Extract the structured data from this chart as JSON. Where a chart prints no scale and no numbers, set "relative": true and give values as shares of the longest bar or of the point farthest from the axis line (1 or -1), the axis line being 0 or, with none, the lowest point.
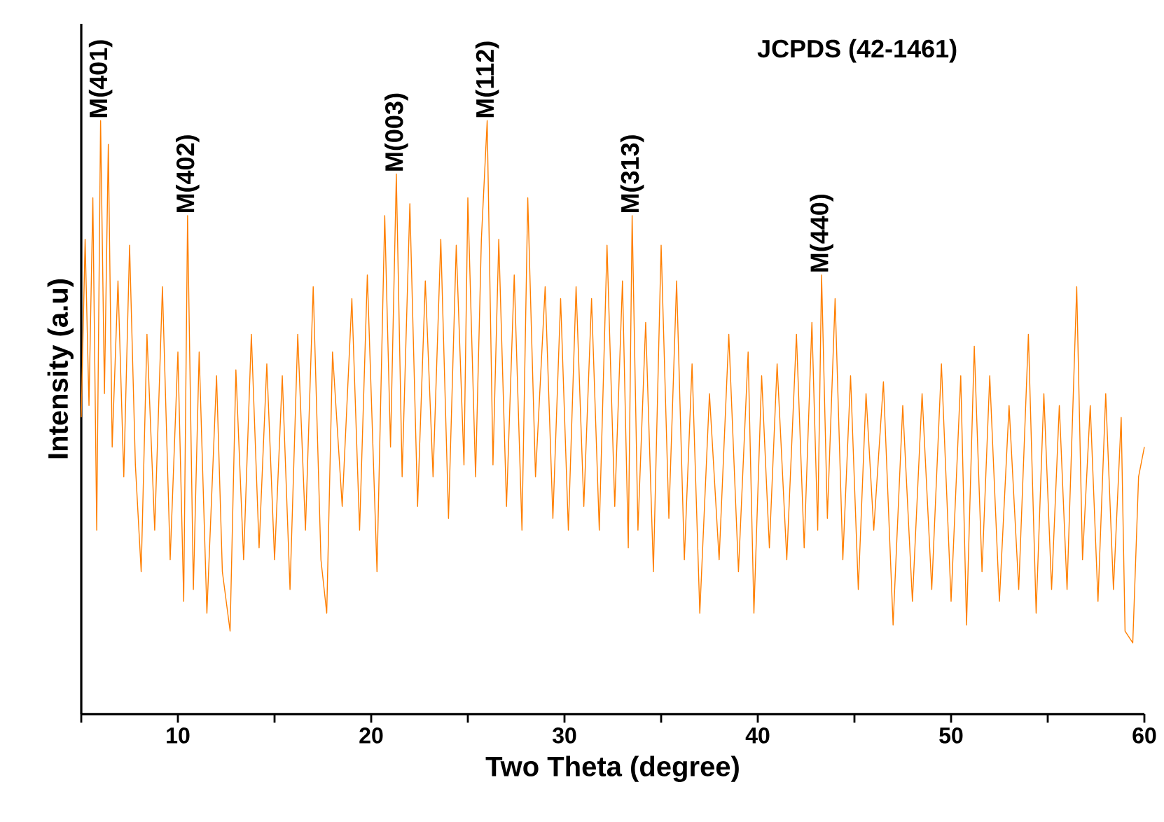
{
  "chart_data": {
    "type": "line",
    "relative": true,
    "xlabel": "Two Theta (degree)",
    "ylabel": "Intensity (a.u)",
    "xlim": [
      5,
      60
    ],
    "xticks": [
      {
        "value": 5,
        "label": null
      },
      10,
      {
        "value": 15,
        "label": null
      },
      20,
      {
        "value": 25,
        "label": null
      },
      30,
      {
        "value": 35,
        "label": null
      },
      40,
      {
        "value": 45,
        "label": null
      },
      50,
      {
        "value": 55,
        "label": null
      },
      60
    ],
    "annotations": [
      "JCPDS (42-1461)",
      {
        "text": "M(401)",
        "x": 6.0,
        "y": 1.0
      },
      {
        "text": "M(402)",
        "x": 10.5,
        "y": 0.84
      },
      {
        "text": "M(003)",
        "x": 21.3,
        "y": 0.91
      },
      {
        "text": "M(112)",
        "x": 26.0,
        "y": 1.0
      },
      {
        "text": "M(313)",
        "x": 33.5,
        "y": 0.84
      },
      {
        "text": "M(440)",
        "x": 43.3,
        "y": 0.74
      }
    ],
    "series": [
      {
        "color": "#ff7f00",
        "x": [
          5.0,
          5.2,
          5.4,
          5.6,
          5.8,
          6.0,
          6.2,
          6.4,
          6.6,
          6.9,
          7.2,
          7.5,
          7.8,
          8.1,
          8.4,
          8.8,
          9.2,
          9.6,
          10.0,
          10.3,
          10.5,
          10.8,
          11.1,
          11.5,
          12.0,
          12.3,
          12.7,
          13.0,
          13.4,
          13.8,
          14.2,
          14.6,
          15.0,
          15.4,
          15.8,
          16.2,
          16.6,
          17.0,
          17.4,
          17.7,
          18.0,
          18.5,
          19.0,
          19.4,
          19.8,
          20.3,
          20.7,
          21.0,
          21.3,
          21.6,
          22.0,
          22.4,
          22.8,
          23.2,
          23.6,
          24.0,
          24.4,
          24.8,
          25.0,
          25.4,
          25.7,
          26.0,
          26.3,
          26.6,
          27.0,
          27.4,
          27.8,
          28.1,
          28.5,
          29.0,
          29.4,
          29.8,
          30.2,
          30.6,
          31.0,
          31.4,
          31.8,
          32.2,
          32.6,
          33.0,
          33.3,
          33.5,
          33.8,
          34.2,
          34.6,
          35.0,
          35.4,
          35.8,
          36.2,
          36.6,
          37.0,
          37.5,
          38.0,
          38.5,
          39.0,
          39.5,
          39.8,
          40.2,
          40.6,
          41.0,
          41.5,
          42.0,
          42.4,
          42.8,
          43.1,
          43.3,
          43.6,
          44.0,
          44.4,
          44.8,
          45.2,
          45.6,
          46.0,
          46.5,
          47.0,
          47.5,
          48.0,
          48.5,
          49.0,
          49.5,
          50.0,
          50.5,
          50.8,
          51.2,
          51.6,
          52.0,
          52.5,
          53.0,
          53.5,
          54.0,
          54.4,
          54.8,
          55.2,
          55.6,
          56.0,
          56.5,
          56.8,
          57.2,
          57.6,
          58.0,
          58.4,
          58.8,
          59.0,
          59.4,
          59.7,
          60.0
        ],
        "values": [
          0.5,
          0.8,
          0.52,
          0.87,
          0.31,
          1.0,
          0.54,
          0.96,
          0.45,
          0.73,
          0.4,
          0.79,
          0.42,
          0.24,
          0.64,
          0.31,
          0.72,
          0.26,
          0.61,
          0.19,
          0.84,
          0.21,
          0.61,
          0.17,
          0.57,
          0.24,
          0.14,
          0.58,
          0.26,
          0.64,
          0.28,
          0.59,
          0.26,
          0.57,
          0.21,
          0.64,
          0.31,
          0.72,
          0.26,
          0.17,
          0.61,
          0.35,
          0.7,
          0.31,
          0.74,
          0.24,
          0.84,
          0.45,
          0.91,
          0.4,
          0.86,
          0.35,
          0.73,
          0.4,
          0.8,
          0.33,
          0.79,
          0.42,
          0.87,
          0.4,
          0.8,
          1.0,
          0.42,
          0.8,
          0.35,
          0.74,
          0.31,
          0.87,
          0.4,
          0.72,
          0.33,
          0.7,
          0.31,
          0.72,
          0.35,
          0.7,
          0.31,
          0.79,
          0.35,
          0.73,
          0.28,
          0.84,
          0.31,
          0.66,
          0.24,
          0.79,
          0.33,
          0.73,
          0.26,
          0.59,
          0.17,
          0.54,
          0.26,
          0.64,
          0.24,
          0.61,
          0.17,
          0.57,
          0.28,
          0.59,
          0.26,
          0.64,
          0.28,
          0.66,
          0.31,
          0.74,
          0.33,
          0.7,
          0.26,
          0.57,
          0.21,
          0.54,
          0.31,
          0.56,
          0.15,
          0.52,
          0.19,
          0.54,
          0.21,
          0.59,
          0.19,
          0.57,
          0.15,
          0.62,
          0.24,
          0.57,
          0.19,
          0.52,
          0.21,
          0.64,
          0.17,
          0.54,
          0.21,
          0.52,
          0.21,
          0.72,
          0.26,
          0.52,
          0.19,
          0.54,
          0.21,
          0.5,
          0.14,
          0.12,
          0.4,
          0.45
        ]
      }
    ]
  }
}
